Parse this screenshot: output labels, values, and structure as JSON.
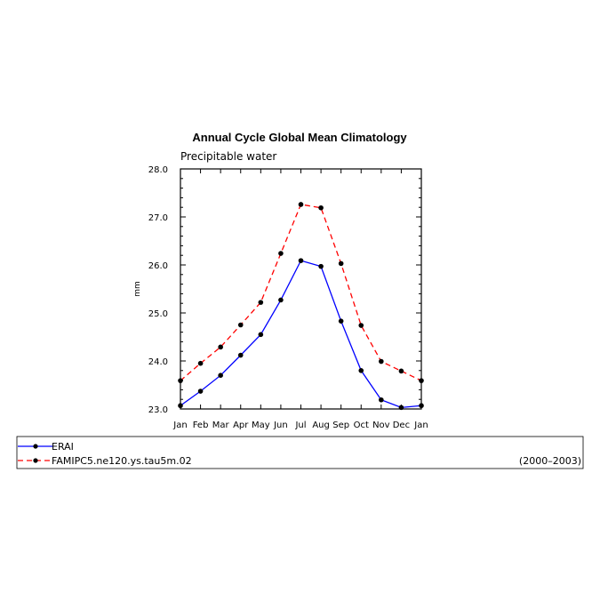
{
  "chart_data": {
    "type": "line",
    "title": "Annual Cycle Global Mean Climatology",
    "subtitle": "Precipitable water",
    "ylabel": "mm",
    "xlabel": "",
    "categories": [
      "Jan",
      "Feb",
      "Mar",
      "Apr",
      "May",
      "Jun",
      "Jul",
      "Aug",
      "Sep",
      "Oct",
      "Nov",
      "Dec",
      "Jan"
    ],
    "ylim": [
      23.0,
      28.0
    ],
    "yticks": [
      "23.0",
      "24.0",
      "25.0",
      "26.0",
      "27.0",
      "28.0"
    ],
    "grid": false,
    "series": [
      {
        "name": "ERAI",
        "color": "#0000ff",
        "dash": "solid",
        "values": [
          23.07,
          23.37,
          23.7,
          24.12,
          24.55,
          25.27,
          26.09,
          25.97,
          24.83,
          23.8,
          23.19,
          23.03,
          23.07
        ]
      },
      {
        "name": "FAMIPC5.ne120.ys.tau5m.02",
        "color": "#ff0000",
        "dash": "dashed",
        "values": [
          23.59,
          23.95,
          24.29,
          24.75,
          25.22,
          26.24,
          27.26,
          27.19,
          26.03,
          24.74,
          23.99,
          23.79,
          23.59
        ]
      }
    ],
    "legend": {
      "placement": "bottom",
      "period": "(2000–2003)"
    }
  }
}
